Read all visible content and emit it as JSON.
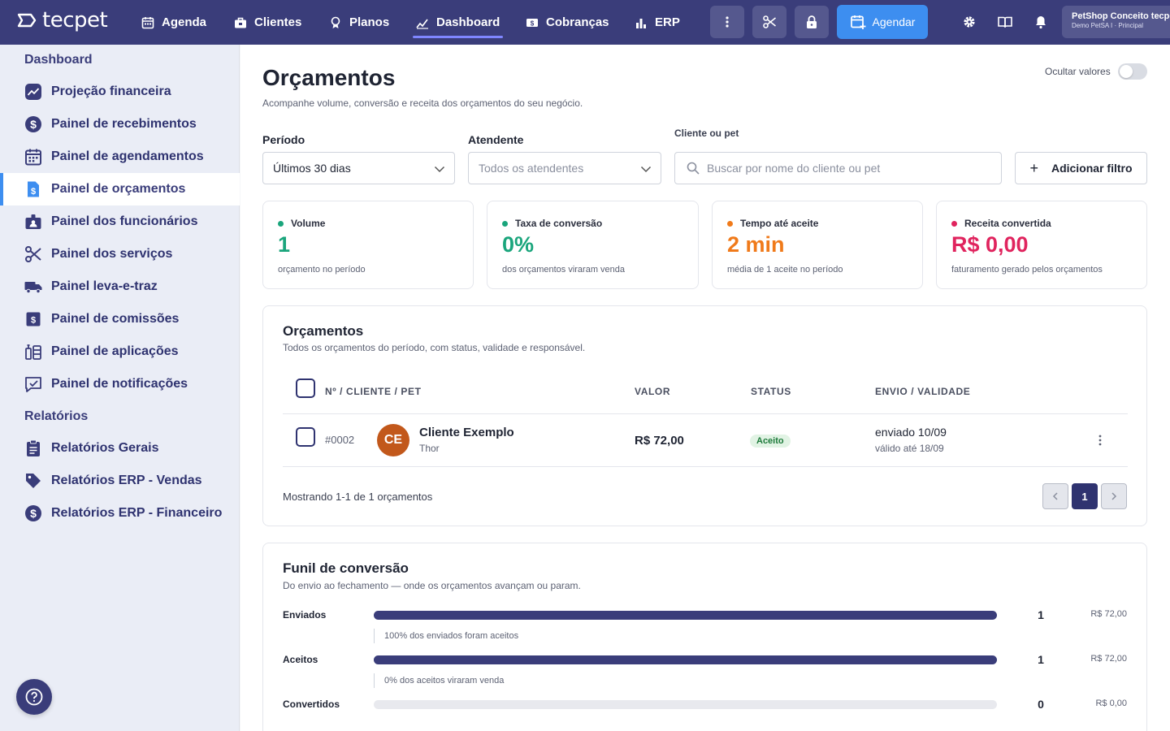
{
  "brand": {
    "name": "tecpet"
  },
  "nav": {
    "items": [
      {
        "label": "Agenda",
        "icon": "calendar-icon"
      },
      {
        "label": "Clientes",
        "icon": "briefcase-icon"
      },
      {
        "label": "Planos",
        "icon": "medal-icon"
      },
      {
        "label": "Dashboard",
        "icon": "chart-line-icon",
        "active": true
      },
      {
        "label": "Cobranças",
        "icon": "money-icon"
      },
      {
        "label": "ERP",
        "icon": "bar-chart-icon"
      }
    ],
    "agendar_label": "Agendar",
    "account_name": "PetShop Conceito tecpet",
    "account_sub": "Demo PetSA I · Principal"
  },
  "sidebar": {
    "section_dashboard": "Dashboard",
    "section_reports": "Relatórios",
    "items": [
      {
        "label": "Projeção financeira",
        "icon": "trend-icon"
      },
      {
        "label": "Painel de recebimentos",
        "icon": "dollar-icon"
      },
      {
        "label": "Painel de agendamentos",
        "icon": "calendar-icon"
      },
      {
        "label": "Painel de orçamentos",
        "icon": "quote-file-icon",
        "active": true
      },
      {
        "label": "Painel dos funcionários",
        "icon": "id-badge-icon"
      },
      {
        "label": "Painel dos serviços",
        "icon": "scissors-icon"
      },
      {
        "label": "Painel leva-e-traz",
        "icon": "truck-icon"
      },
      {
        "label": "Painel de comissões",
        "icon": "money-icon"
      },
      {
        "label": "Painel de aplicações",
        "icon": "syringe-icon"
      },
      {
        "label": "Painel de notificações",
        "icon": "message-icon"
      }
    ],
    "report_items": [
      {
        "label": "Relatórios Gerais",
        "icon": "clipboard-icon"
      },
      {
        "label": "Relatórios ERP - Vendas",
        "icon": "tag-icon"
      },
      {
        "label": "Relatórios ERP - Financeiro",
        "icon": "dollar-icon"
      }
    ]
  },
  "page": {
    "title": "Orçamentos",
    "subtitle": "Acompanhe volume, conversão e receita dos orçamentos do seu negócio.",
    "hide_values_label": "Ocultar valores"
  },
  "filters": {
    "period_label": "Período",
    "period_value": "Últimos 30 dias",
    "attendant_label": "Atendente",
    "attendant_placeholder": "Todos os atendentes",
    "search_label": "Cliente ou pet",
    "search_placeholder": "Buscar por nome do cliente ou pet",
    "add_filter_label": "Adicionar filtro"
  },
  "kpis": [
    {
      "label": "Volume",
      "value": "1",
      "sub": "orçamento no período",
      "color": "#1aa57c"
    },
    {
      "label": "Taxa de conversão",
      "value": "0%",
      "sub": "dos orçamentos viraram venda",
      "color": "#1aa57c"
    },
    {
      "label": "Tempo até aceite",
      "value": "2 min",
      "sub": "média de 1 aceite no período",
      "color": "#f07a1a"
    },
    {
      "label": "Receita convertida",
      "value": "R$ 0,00",
      "sub": "faturamento gerado pelos orçamentos",
      "color": "#e0245e"
    }
  ],
  "quotes": {
    "title": "Orçamentos",
    "subtitle": "Todos os orçamentos do período, com status, validade e responsável.",
    "columns": [
      "Nº / CLIENTE / PET",
      "VALOR",
      "STATUS",
      "ENVIO / VALIDADE"
    ],
    "rows": [
      {
        "number": "#0002",
        "initials": "CE",
        "client": "Cliente Exemplo",
        "pet": "Thor",
        "value": "R$ 72,00",
        "status": "Aceito",
        "sent": "enviado 10/09",
        "valid": "válido até 18/09"
      }
    ],
    "showing": "Mostrando 1-1 de 1 orçamentos",
    "current_page": "1"
  },
  "funnel": {
    "title": "Funil de conversão",
    "subtitle": "Do envio ao fechamento — onde os orçamentos avançam ou param.",
    "stages": [
      {
        "label": "Enviados",
        "count": "1",
        "amount": "R$ 72,00",
        "fill": 1.0,
        "note": "100% dos enviados foram aceitos"
      },
      {
        "label": "Aceitos",
        "count": "1",
        "amount": "R$ 72,00",
        "fill": 1.0,
        "note": "0% dos aceitos viraram venda"
      },
      {
        "label": "Convertidos",
        "count": "0",
        "amount": "R$ 0,00",
        "fill": 0.0
      }
    ]
  }
}
